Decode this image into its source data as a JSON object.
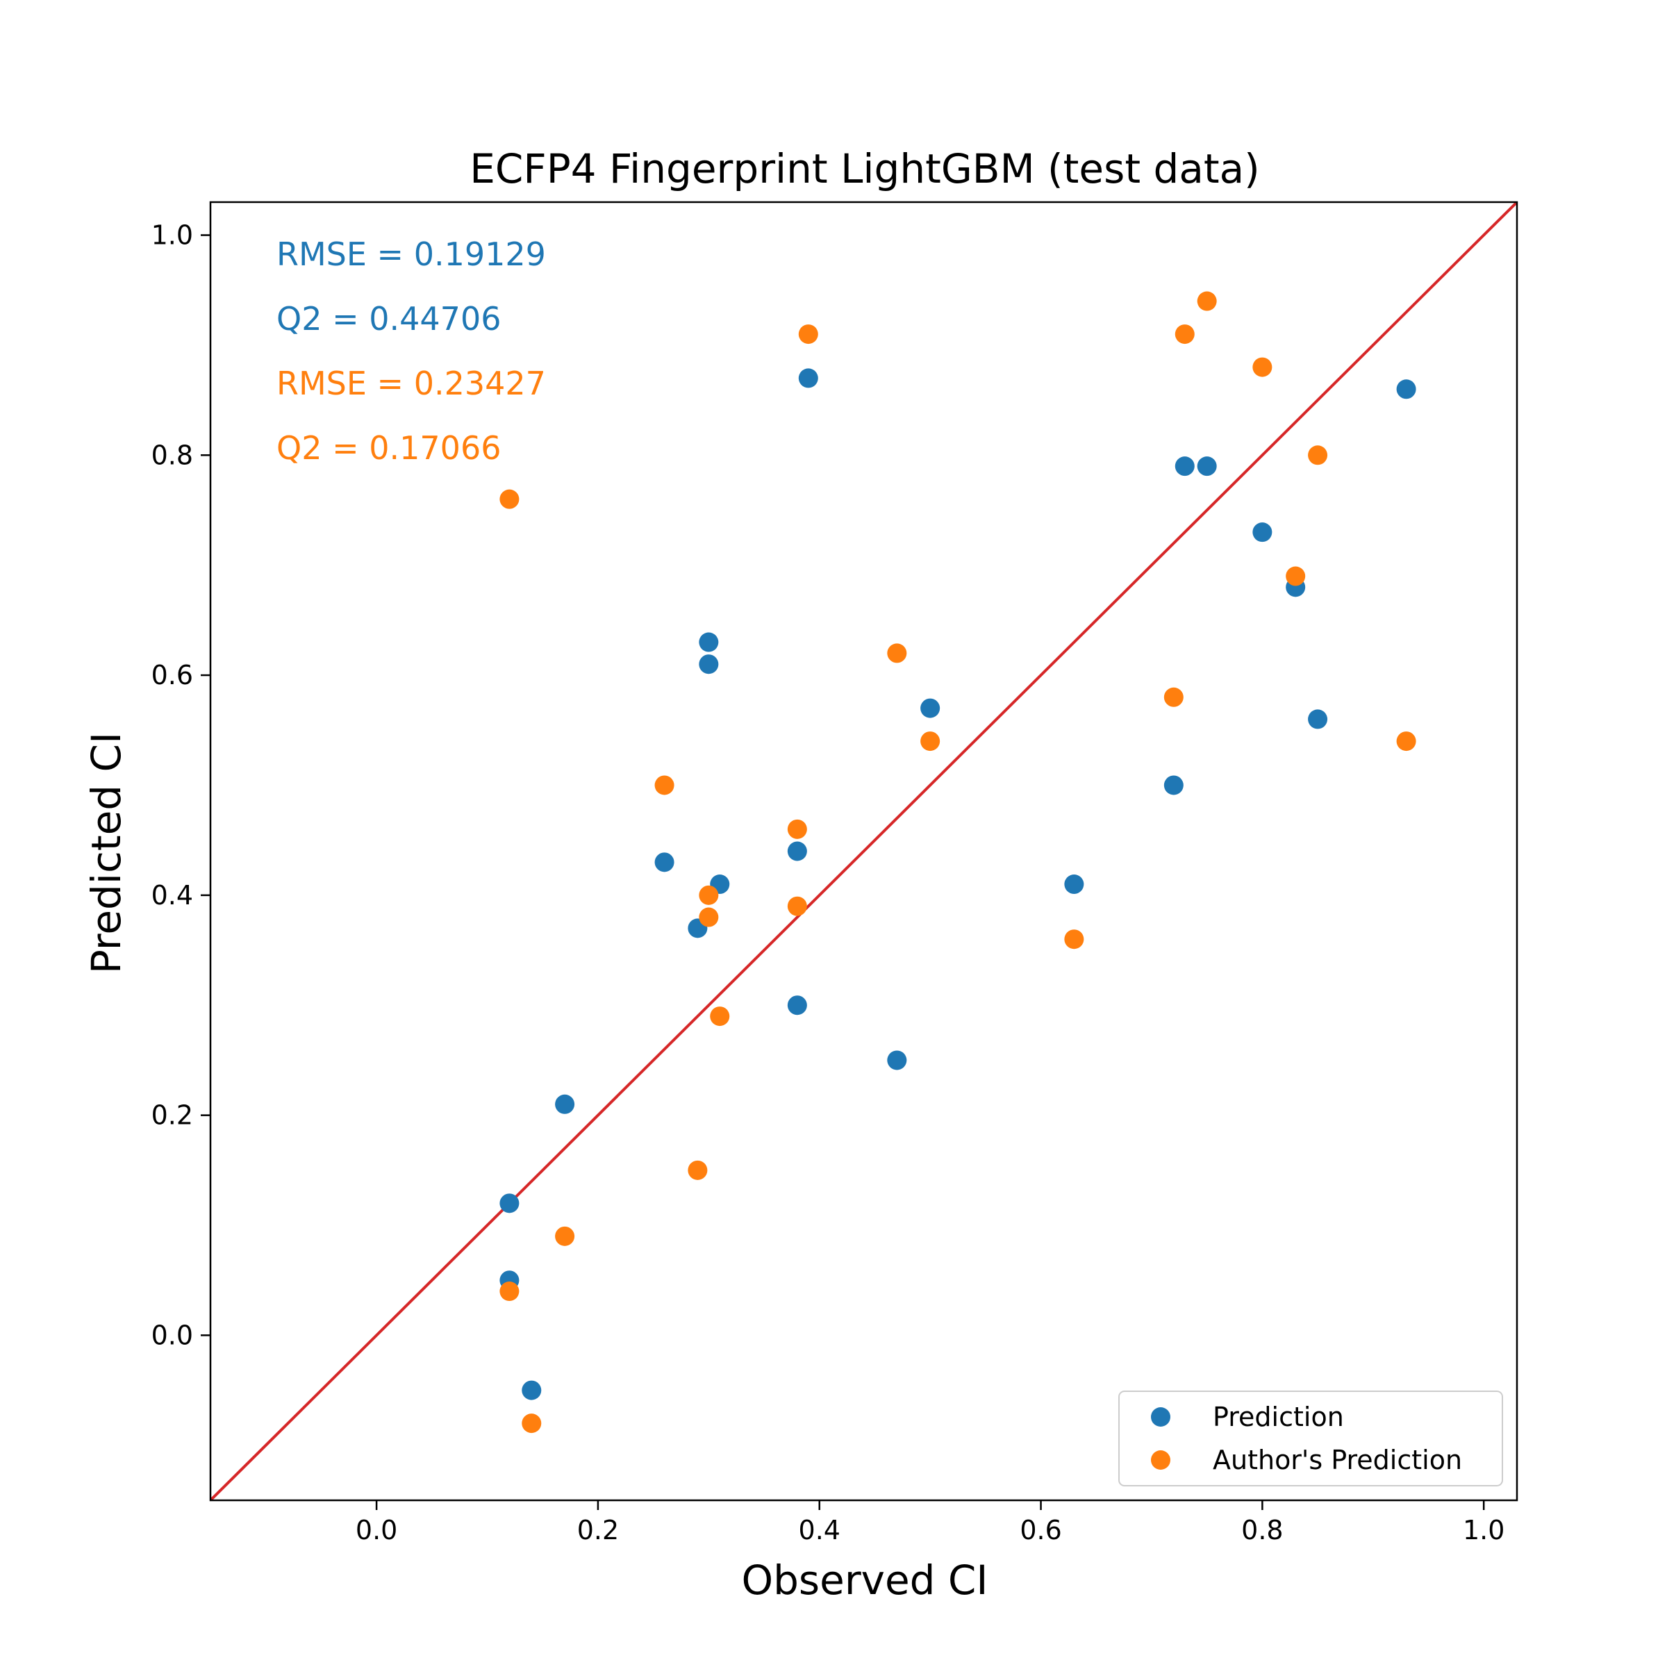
{
  "chart_data": {
    "type": "scatter",
    "title": "ECFP4 Fingerprint LightGBM (test data)",
    "xlabel": "Observed CI",
    "ylabel": "Predicted CI",
    "xlim": [
      -0.15,
      1.03
    ],
    "ylim": [
      -0.15,
      1.03
    ],
    "xticks": [
      "0.0",
      "0.2",
      "0.4",
      "0.6",
      "0.8",
      "1.0"
    ],
    "yticks": [
      "0.0",
      "0.2",
      "0.4",
      "0.6",
      "0.8",
      "1.0"
    ],
    "grid": false,
    "legend_position": "bottom-right",
    "reference_line": {
      "from": [
        -0.15,
        -0.15
      ],
      "to": [
        1.03,
        1.03
      ],
      "color": "#d62728"
    },
    "annotations": [
      {
        "text": "RMSE = 0.19129",
        "color": "#1f77b4"
      },
      {
        "text": "Q2 = 0.44706",
        "color": "#1f77b4"
      },
      {
        "text": "RMSE = 0.23427",
        "color": "#ff7f0e"
      },
      {
        "text": "Q2 = 0.17066",
        "color": "#ff7f0e"
      }
    ],
    "series": [
      {
        "name": "Prediction",
        "color": "#1f77b4",
        "x": [
          0.39,
          0.93,
          0.73,
          0.75,
          0.8,
          0.83,
          0.3,
          0.3,
          0.5,
          0.85,
          0.72,
          0.26,
          0.38,
          0.31,
          0.29,
          0.63,
          0.38,
          0.47,
          0.17,
          0.12,
          0.12,
          0.14
        ],
        "y": [
          0.87,
          0.86,
          0.79,
          0.79,
          0.73,
          0.68,
          0.63,
          0.61,
          0.57,
          0.56,
          0.5,
          0.43,
          0.44,
          0.41,
          0.37,
          0.41,
          0.3,
          0.25,
          0.21,
          0.12,
          0.05,
          -0.05
        ]
      },
      {
        "name": "Author's Prediction",
        "color": "#ff7f0e",
        "x": [
          0.75,
          0.39,
          0.73,
          0.8,
          0.85,
          0.12,
          0.83,
          0.47,
          0.72,
          0.5,
          0.93,
          0.26,
          0.38,
          0.3,
          0.38,
          0.3,
          0.63,
          0.31,
          0.29,
          0.17,
          0.12,
          0.14
        ],
        "y": [
          0.94,
          0.91,
          0.91,
          0.88,
          0.8,
          0.76,
          0.69,
          0.62,
          0.58,
          0.54,
          0.54,
          0.5,
          0.46,
          0.4,
          0.39,
          0.38,
          0.36,
          0.29,
          0.15,
          0.09,
          0.04,
          -0.08
        ]
      }
    ]
  }
}
